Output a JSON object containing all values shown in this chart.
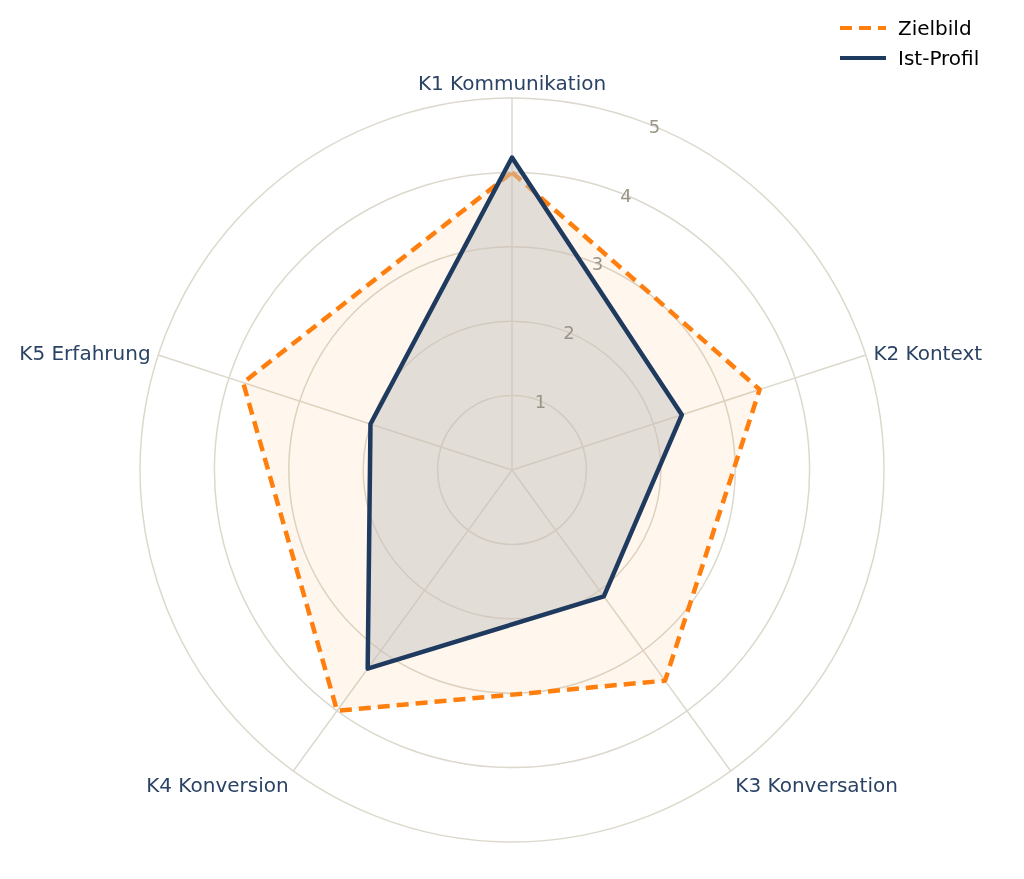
{
  "chart_data": {
    "type": "radar",
    "categories": [
      "K1 Kommunikation",
      "K2 Kontext",
      "K3 Konversation",
      "K4 Konversion",
      "K5 Erfahrung"
    ],
    "series": [
      {
        "name": "Zielbild",
        "color": "#ff7f0e",
        "values": [
          4.0,
          3.5,
          3.5,
          4.0,
          3.8
        ],
        "line_style": "dashed"
      },
      {
        "name": "Ist-Profil",
        "color": "#1f3a5f",
        "values": [
          4.2,
          2.4,
          2.1,
          3.3,
          2.0
        ],
        "line_style": "solid"
      }
    ],
    "ylim": [
      0,
      5
    ],
    "yticks": [
      1,
      2,
      3,
      4,
      5
    ],
    "grid": true,
    "legend": "top right"
  }
}
